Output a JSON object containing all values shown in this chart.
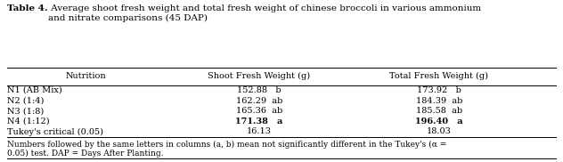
{
  "title_bold": "Table 4.",
  "title_rest": " Average shoot fresh weight and total fresh weight of chinese broccoli in various ammonium\nand nitrate comparisons (45 DAP)",
  "col_headers": [
    "Nutrition",
    "Shoot Fresh Weight (g)",
    "Total Fresh Weight (g)"
  ],
  "rows": [
    [
      "N1 (AB Mix)",
      "152.88   b",
      "173.92   b"
    ],
    [
      "N2 (1:4)",
      "162.29  ab",
      "184.39  ab"
    ],
    [
      "N3 (1:8)",
      "165.36  ab",
      "185.58  ab"
    ],
    [
      "N4 (1:12)",
      "171.38   a",
      "196.40   a"
    ],
    [
      "Tukey's critical (0.05)",
      "16.13",
      "18.03"
    ]
  ],
  "bold_row_index": 3,
  "footnote": "Numbers followed by the same letters in columns (a, b) mean not significantly different in the Tukey's (α =\n0.05) test. DAP = Days After Planting.",
  "background_color": "#ffffff",
  "font_size": 7.0,
  "title_font_size": 7.5,
  "footnote_font_size": 6.5
}
